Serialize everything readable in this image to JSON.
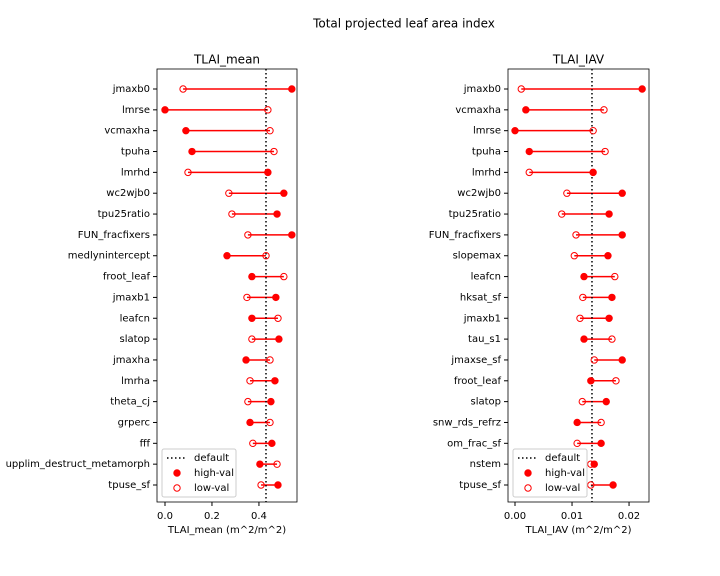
{
  "title": "Total projected leaf area index",
  "chart_data": [
    {
      "type": "dumbbell",
      "title": "TLAI_mean",
      "xlabel": "TLAI_mean (m^2/m^2)",
      "categories": [
        "jmaxb0",
        "lmrse",
        "vcmaxha",
        "tpuha",
        "lmrhd",
        "wc2wjb0",
        "tpu25ratio",
        "FUN_fracfixers",
        "medlynintercept",
        "froot_leaf",
        "jmaxb1",
        "leafcn",
        "slatop",
        "jmaxha",
        "lmrha",
        "theta_cj",
        "grperc",
        "fff",
        "upplim_destruct_metamorph",
        "tpuse_sf"
      ],
      "series": [
        {
          "name": "high-val",
          "color": "#ff0000",
          "marker": "filled",
          "values": [
            0.54,
            0.0,
            0.089,
            0.115,
            0.438,
            0.506,
            0.477,
            0.54,
            0.264,
            0.37,
            0.472,
            0.37,
            0.485,
            0.345,
            0.468,
            0.451,
            0.362,
            0.455,
            0.404,
            0.481
          ]
        },
        {
          "name": "low-val",
          "color": "#ff0000",
          "marker": "open",
          "values": [
            0.077,
            0.438,
            0.447,
            0.464,
            0.098,
            0.272,
            0.285,
            0.353,
            0.43,
            0.506,
            0.349,
            0.481,
            0.37,
            0.447,
            0.362,
            0.353,
            0.447,
            0.374,
            0.477,
            0.409
          ]
        }
      ],
      "default": {
        "name": "default",
        "value": 0.43,
        "color": "#000000"
      },
      "xlim": [
        -0.034,
        0.562
      ],
      "xticks": [
        {
          "value": 0,
          "label": "0.0"
        },
        {
          "value": 0.2,
          "label": "0.2"
        },
        {
          "value": 0.4,
          "label": "0.4"
        }
      ],
      "legend": "lower left"
    },
    {
      "type": "dumbbell",
      "title": "TLAI_IAV",
      "xlabel": "TLAI_IAV (m^2/m^2)",
      "categories": [
        "jmaxb0",
        "vcmaxha",
        "lmrse",
        "tpuha",
        "lmrhd",
        "wc2wjb0",
        "tpu25ratio",
        "FUN_fracfixers",
        "slopemax",
        "leafcn",
        "hksat_sf",
        "jmaxb1",
        "tau_s1",
        "jmaxse_sf",
        "froot_leaf",
        "slatop",
        "snw_rds_refrz",
        "om_frac_sf",
        "nstem",
        "tpuse_sf"
      ],
      "series": [
        {
          "name": "high-val",
          "color": "#ff0000",
          "marker": "filled",
          "values": [
            0.0223,
            0.0019,
            0.0,
            0.0025,
            0.0137,
            0.0188,
            0.0165,
            0.0188,
            0.0163,
            0.0121,
            0.017,
            0.0165,
            0.0121,
            0.0188,
            0.0133,
            0.016,
            0.0109,
            0.0151,
            0.0139,
            0.0172
          ]
        },
        {
          "name": "low-val",
          "color": "#ff0000",
          "marker": "open",
          "values": [
            0.0011,
            0.0156,
            0.0137,
            0.0158,
            0.0025,
            0.0091,
            0.0082,
            0.0107,
            0.0104,
            0.0175,
            0.0119,
            0.0114,
            0.017,
            0.0139,
            0.0177,
            0.0118,
            0.0151,
            0.0109,
            0.0133,
            0.0133
          ]
        }
      ],
      "default": {
        "name": "default",
        "value": 0.0135,
        "color": "#000000"
      },
      "xlim": [
        -0.00123,
        0.0235
      ],
      "xticks": [
        {
          "value": 0,
          "label": "0.00"
        },
        {
          "value": 0.01,
          "label": "0.01"
        },
        {
          "value": 0.02,
          "label": "0.02"
        }
      ],
      "legend": "lower left"
    }
  ]
}
